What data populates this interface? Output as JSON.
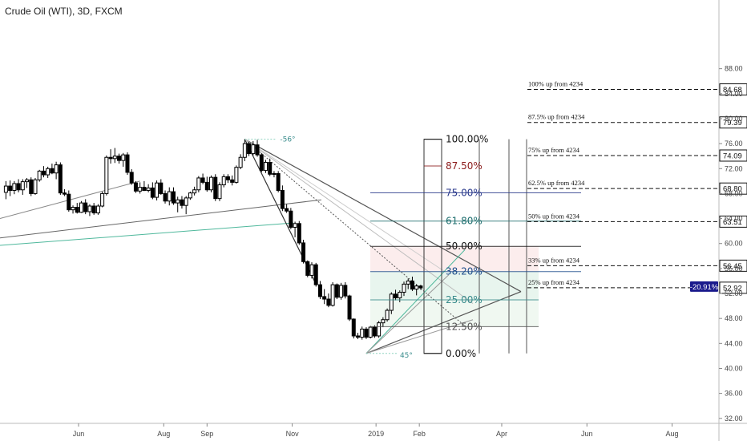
{
  "chart_title": "Crude Oil (WTI), 3D, FXCM",
  "chart_data": {
    "type": "candlestick",
    "title": "Crude Oil (WTI), 3D, FXCM",
    "price_range": [
      31.2,
      99
    ],
    "y_ticks": [
      32,
      36,
      40,
      44,
      48,
      52,
      56,
      60,
      64,
      68,
      72,
      76,
      80,
      84,
      88
    ],
    "y_tick_labels": [
      "32.00",
      "36.00",
      "40.00",
      "44.00",
      "48.00",
      "52.00",
      "56.00",
      "60.00",
      "64.00",
      "68.00",
      "72.00",
      "76.00",
      "80.00",
      "84.00",
      "88.00"
    ],
    "x_labels": [
      {
        "label": "Jun",
        "day": 152
      },
      {
        "label": "Aug",
        "day": 213
      },
      {
        "label": "Sep",
        "day": 244
      },
      {
        "label": "Nov",
        "day": 305
      },
      {
        "label": "2019",
        "day": 365
      },
      {
        "label": "Feb",
        "day": 396
      },
      {
        "label": "Apr",
        "day": 455
      },
      {
        "label": "Jun",
        "day": 516
      },
      {
        "label": "Aug",
        "day": 577
      }
    ],
    "candles": [
      [
        100,
        68.2,
        70.0,
        67.1,
        69.2
      ],
      [
        103,
        69.2,
        70.1,
        67.6,
        68.5
      ],
      [
        106,
        68.5,
        70.0,
        67.9,
        69.6
      ],
      [
        109,
        69.6,
        70.3,
        68.2,
        68.6
      ],
      [
        112,
        68.6,
        70.3,
        67.8,
        69.9
      ],
      [
        115,
        69.9,
        70.5,
        68.9,
        70.2
      ],
      [
        118,
        70.2,
        70.6,
        67.6,
        68.0
      ],
      [
        121,
        68.0,
        70.5,
        67.8,
        70.2
      ],
      [
        124,
        70.2,
        71.8,
        69.9,
        71.6
      ],
      [
        127,
        71.6,
        72.4,
        70.6,
        71.0
      ],
      [
        130,
        71.0,
        72.3,
        70.5,
        72.0
      ],
      [
        133,
        72.0,
        72.8,
        71.1,
        71.3
      ],
      [
        136,
        71.3,
        73.1,
        70.3,
        72.6
      ],
      [
        139,
        72.6,
        73.0,
        67.8,
        68.1
      ],
      [
        142,
        68.1,
        68.7,
        67.6,
        67.9
      ],
      [
        145,
        67.9,
        68.5,
        65.1,
        65.4
      ],
      [
        148,
        65.4,
        66.1,
        64.8,
        65.8
      ],
      [
        151,
        65.8,
        66.5,
        64.8,
        65.0
      ],
      [
        154,
        65.0,
        66.8,
        64.9,
        66.5
      ],
      [
        157,
        66.5,
        67.1,
        64.7,
        65.1
      ],
      [
        160,
        65.1,
        66.3,
        64.4,
        66.0
      ],
      [
        163,
        66.0,
        66.5,
        64.6,
        64.9
      ],
      [
        166,
        64.9,
        66.3,
        64.6,
        66.0
      ],
      [
        169,
        66.0,
        68.3,
        65.8,
        68.0
      ],
      [
        172,
        68.0,
        74.1,
        67.7,
        73.8
      ],
      [
        175,
        73.8,
        75.1,
        72.8,
        73.6
      ],
      [
        178,
        73.6,
        75.3,
        72.9,
        74.0
      ],
      [
        181,
        74.0,
        74.4,
        72.8,
        73.3
      ],
      [
        184,
        73.3,
        74.5,
        72.3,
        74.2
      ],
      [
        187,
        74.2,
        74.6,
        71.0,
        71.4
      ],
      [
        190,
        71.4,
        71.9,
        69.4,
        69.7
      ],
      [
        193,
        69.7,
        70.0,
        68.1,
        68.4
      ],
      [
        196,
        68.4,
        69.8,
        68.0,
        69.0
      ],
      [
        199,
        69.0,
        70.0,
        68.4,
        68.5
      ],
      [
        202,
        68.5,
        69.5,
        68.2,
        68.9
      ],
      [
        205,
        68.9,
        69.8,
        67.1,
        67.4
      ],
      [
        208,
        67.4,
        70.1,
        66.9,
        69.7
      ],
      [
        211,
        69.7,
        70.3,
        67.8,
        68.0
      ],
      [
        214,
        68.0,
        68.5,
        66.4,
        66.8
      ],
      [
        217,
        66.8,
        69.0,
        66.1,
        68.3
      ],
      [
        220,
        68.3,
        69.0,
        66.2,
        66.5
      ],
      [
        223,
        66.5,
        67.5,
        65.0,
        67.0
      ],
      [
        226,
        67.0,
        67.6,
        65.6,
        66.1
      ],
      [
        229,
        66.1,
        67.6,
        64.7,
        67.3
      ],
      [
        232,
        67.3,
        68.3,
        67.0,
        68.1
      ],
      [
        235,
        68.1,
        69.1,
        67.7,
        68.6
      ],
      [
        238,
        68.6,
        70.8,
        68.2,
        70.5
      ],
      [
        241,
        70.5,
        71.2,
        69.5,
        69.8
      ],
      [
        244,
        69.8,
        70.7,
        68.3,
        68.6
      ],
      [
        247,
        68.6,
        70.9,
        68.2,
        70.6
      ],
      [
        250,
        70.6,
        71.1,
        66.8,
        67.2
      ],
      [
        253,
        67.2,
        69.8,
        66.8,
        69.4
      ],
      [
        256,
        69.4,
        71.1,
        69.0,
        70.7
      ],
      [
        259,
        70.7,
        71.1,
        69.7,
        70.2
      ],
      [
        262,
        70.2,
        70.9,
        69.3,
        69.8
      ],
      [
        265,
        69.8,
        72.5,
        69.6,
        72.2
      ],
      [
        268,
        72.2,
        74.3,
        71.9,
        73.8
      ],
      [
        271,
        73.8,
        76.7,
        73.2,
        76.0
      ],
      [
        274,
        76.0,
        76.3,
        74.0,
        74.4
      ],
      [
        277,
        74.4,
        76.4,
        74.1,
        75.8
      ],
      [
        280,
        75.8,
        76.6,
        73.9,
        74.2
      ],
      [
        283,
        74.2,
        74.5,
        71.4,
        71.7
      ],
      [
        286,
        71.7,
        73.4,
        71.3,
        73.0
      ],
      [
        289,
        73.0,
        73.6,
        70.8,
        71.1
      ],
      [
        292,
        71.1,
        71.6,
        70.6,
        71.2
      ],
      [
        295,
        71.2,
        71.6,
        68.2,
        68.5
      ],
      [
        298,
        68.5,
        69.3,
        65.2,
        65.6
      ],
      [
        301,
        65.6,
        66.3,
        64.9,
        65.2
      ],
      [
        304,
        65.2,
        65.7,
        62.3,
        62.6
      ],
      [
        307,
        62.6,
        63.5,
        61.0,
        63.2
      ],
      [
        310,
        63.2,
        63.6,
        59.8,
        60.1
      ],
      [
        313,
        60.1,
        60.6,
        56.8,
        57.1
      ],
      [
        316,
        57.1,
        57.3,
        54.6,
        54.9
      ],
      [
        319,
        54.9,
        57.0,
        54.4,
        56.6
      ],
      [
        322,
        56.6,
        56.9,
        53.1,
        53.4
      ],
      [
        325,
        53.4,
        54.0,
        51.1,
        51.5
      ],
      [
        328,
        51.5,
        52.7,
        50.3,
        51.1
      ],
      [
        331,
        51.1,
        52.0,
        49.8,
        50.1
      ],
      [
        334,
        50.1,
        53.8,
        49.9,
        53.4
      ],
      [
        337,
        53.4,
        53.6,
        51.1,
        51.4
      ],
      [
        340,
        51.4,
        53.7,
        51.0,
        53.3
      ],
      [
        343,
        53.3,
        53.8,
        51.2,
        51.6
      ],
      [
        346,
        51.6,
        51.8,
        47.6,
        47.9
      ],
      [
        349,
        47.9,
        48.0,
        44.8,
        45.2
      ],
      [
        352,
        45.2,
        45.7,
        44.7,
        45.0
      ],
      [
        355,
        45.0,
        46.7,
        44.6,
        46.3
      ],
      [
        358,
        46.3,
        46.6,
        44.7,
        45.0
      ],
      [
        361,
        45.0,
        46.8,
        44.8,
        46.6
      ],
      [
        364,
        46.6,
        46.9,
        44.9,
        45.2
      ],
      [
        367,
        45.2,
        47.6,
        44.9,
        47.3
      ],
      [
        370,
        47.3,
        48.2,
        46.6,
        47.8
      ],
      [
        373,
        47.8,
        49.6,
        47.5,
        49.3
      ],
      [
        376,
        49.3,
        52.2,
        48.7,
        51.9
      ],
      [
        379,
        51.9,
        52.6,
        50.9,
        51.3
      ],
      [
        382,
        51.3,
        52.5,
        50.6,
        52.2
      ],
      [
        385,
        52.2,
        53.9,
        51.6,
        53.5
      ],
      [
        388,
        53.5,
        54.4,
        52.7,
        54.0
      ],
      [
        391,
        54.0,
        54.7,
        52.4,
        52.7
      ],
      [
        394,
        52.7,
        53.5,
        51.7,
        53.2
      ],
      [
        397,
        53.2,
        53.4,
        52.6,
        52.9
      ]
    ],
    "fibonacci": {
      "low": 42.4,
      "high": 76.7,
      "levels": [
        {
          "ratio": 1.0,
          "label": "100.00%",
          "color": "#111111"
        },
        {
          "ratio": 0.875,
          "label": "87.50%",
          "color": "#8c1c1c"
        },
        {
          "ratio": 0.75,
          "label": "75.00%",
          "color": "#2b3a8c"
        },
        {
          "ratio": 0.618,
          "label": "61.80%",
          "color": "#1f6f6f"
        },
        {
          "ratio": 0.5,
          "label": "50.00%",
          "color": "#111111"
        },
        {
          "ratio": 0.382,
          "label": "38.20%",
          "color": "#1f4f8c"
        },
        {
          "ratio": 0.25,
          "label": "25.00%",
          "color": "#3a8c8c"
        },
        {
          "ratio": 0.125,
          "label": "12.50%",
          "color": "#555555"
        },
        {
          "ratio": 0.0,
          "label": "0.00%",
          "color": "#111111"
        }
      ]
    },
    "target_levels": [
      {
        "label": "100% up from 4234",
        "price": 84.68,
        "price_label": "84.68"
      },
      {
        "label": "87.5% up from 4234",
        "price": 79.39,
        "price_label": "79.39"
      },
      {
        "label": "75% up from 4234",
        "price": 74.09,
        "price_label": "74.09"
      },
      {
        "label": "62.5% up from 4234",
        "price": 68.8,
        "price_label": "68.80"
      },
      {
        "label": "50% up from 4234",
        "price": 63.51,
        "price_label": "63.51"
      },
      {
        "label": "33% up from 4234",
        "price": 56.45,
        "price_label": "56.45"
      },
      {
        "label": "25% up from 4234",
        "price": 52.92,
        "price_label": "52.92"
      }
    ],
    "current_price_label": "52.92",
    "change_badge": "-20.91%",
    "angle_labels": [
      "-56°",
      "45°"
    ],
    "colors": {
      "up": "#ffffff",
      "down": "#000000",
      "outline": "#000000",
      "trend": "#555555",
      "teal": "#4fb89c",
      "price_badge": "#1a1a8c"
    }
  }
}
